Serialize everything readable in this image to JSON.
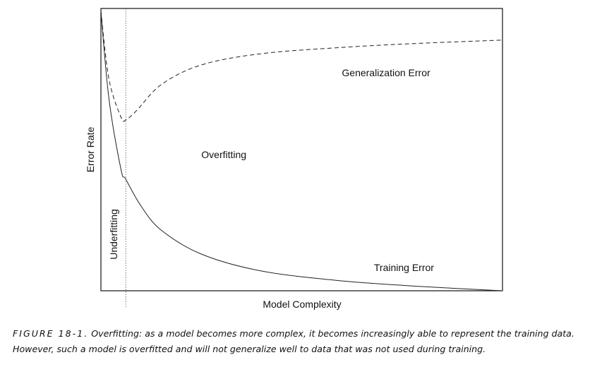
{
  "chart_data": {
    "type": "line",
    "xlabel": "Model Complexity",
    "ylabel": "Error Rate",
    "xlim": [
      0,
      1
    ],
    "ylim": [
      0,
      1
    ],
    "grid": false,
    "legend": "none",
    "series": [
      {
        "name": "Generalization Error",
        "style": "dashed",
        "x": [
          0,
          0.02,
          0.05,
          0.062,
          0.09,
          0.15,
          0.25,
          0.4,
          0.6,
          0.8,
          1.0
        ],
        "y": [
          0.99,
          0.75,
          0.615,
          0.605,
          0.64,
          0.73,
          0.8,
          0.84,
          0.862,
          0.877,
          0.888
        ]
      },
      {
        "name": "Training Error",
        "style": "solid",
        "x": [
          0,
          0.02,
          0.05,
          0.062,
          0.1,
          0.15,
          0.25,
          0.4,
          0.6,
          0.8,
          1.0
        ],
        "y": [
          0.99,
          0.68,
          0.43,
          0.395,
          0.3,
          0.215,
          0.13,
          0.07,
          0.035,
          0.015,
          0.0
        ]
      }
    ],
    "annotations": [
      {
        "text": "Generalization Error",
        "x": 0.6,
        "y": 0.76
      },
      {
        "text": "Overfitting",
        "x": 0.25,
        "y": 0.47
      },
      {
        "text": "Underfitting",
        "x": 0.04,
        "y": 0.2,
        "rotation": -90
      },
      {
        "text": "Training Error",
        "x": 0.68,
        "y": 0.07
      }
    ],
    "reference_line": {
      "orientation": "vertical",
      "x": 0.062,
      "style": "dotted"
    }
  },
  "caption": {
    "label": "FIGURE 18-1.",
    "line1": "Overfitting: as a model becomes more complex, it becomes increasingly able to represent the training data.",
    "line2": "However, such a model is overfitted and will not generalize well to data that was not used during training."
  }
}
